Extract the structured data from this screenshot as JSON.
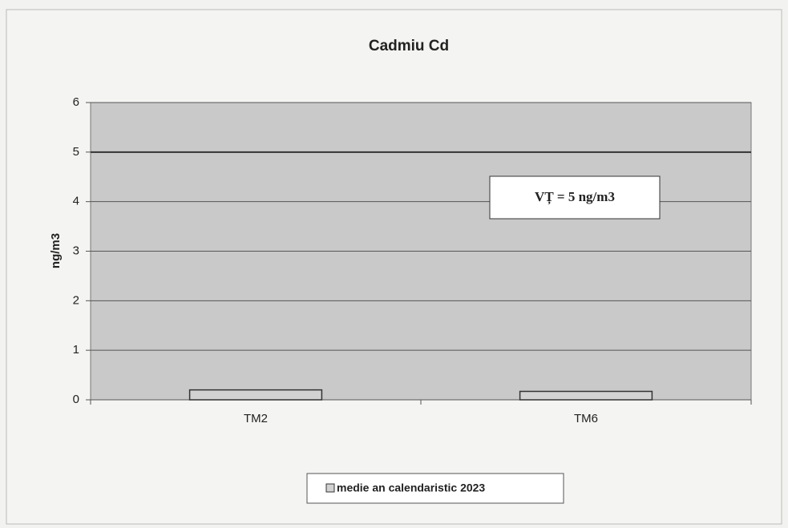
{
  "chart_data": {
    "type": "bar",
    "title": "Cadmiu Cd",
    "ylabel": "ng/m3",
    "categories": [
      "TM2",
      "TM6"
    ],
    "series": [
      {
        "name": "medie an calendaristic 2023",
        "color": "#d2d2d2",
        "values": [
          0.2,
          0.17
        ]
      }
    ],
    "ylim": [
      0,
      6
    ],
    "yticks": [
      0,
      1,
      2,
      3,
      4,
      5,
      6
    ],
    "grid": true,
    "reference_line": {
      "value": 5,
      "label": "VȚ = 5 ng/m3"
    },
    "legend": "bottom"
  }
}
